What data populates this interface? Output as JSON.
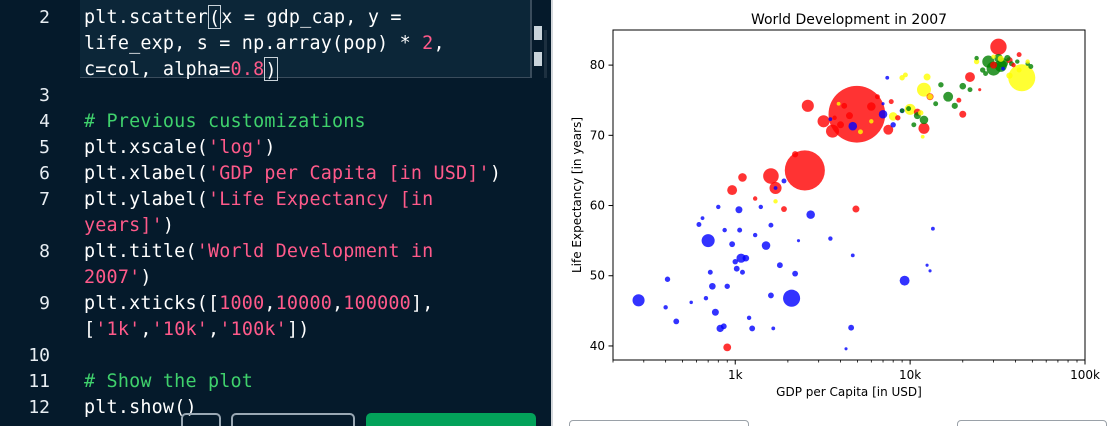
{
  "editor": {
    "lines": [
      {
        "num": "2",
        "segments": [
          {
            "t": "plt.scatter",
            "c": "plain"
          },
          {
            "t": "(",
            "c": "cursor"
          },
          {
            "t": "x = gdp_cap, y =",
            "c": "plain"
          }
        ]
      },
      {
        "num": "",
        "segments": [
          {
            "t": "life_exp, s = np.array(pop) * ",
            "c": "plain"
          },
          {
            "t": "2",
            "c": "num"
          },
          {
            "t": ",",
            "c": "plain"
          }
        ]
      },
      {
        "num": "",
        "segments": [
          {
            "t": "c=col, alpha=",
            "c": "plain"
          },
          {
            "t": "0.8",
            "c": "num"
          },
          {
            "t": ")",
            "c": "cursor"
          }
        ]
      },
      {
        "num": "3",
        "segments": []
      },
      {
        "num": "4",
        "segments": [
          {
            "t": "# Previous customizations",
            "c": "com"
          }
        ]
      },
      {
        "num": "5",
        "segments": [
          {
            "t": "plt.xscale(",
            "c": "plain"
          },
          {
            "t": "'log'",
            "c": "str"
          },
          {
            "t": ")",
            "c": "plain"
          }
        ]
      },
      {
        "num": "6",
        "segments": [
          {
            "t": "plt.xlabel(",
            "c": "plain"
          },
          {
            "t": "'GDP per Capita [in USD]'",
            "c": "str"
          },
          {
            "t": ")",
            "c": "plain"
          }
        ]
      },
      {
        "num": "7",
        "segments": [
          {
            "t": "plt.ylabel(",
            "c": "plain"
          },
          {
            "t": "'Life Expectancy [in",
            "c": "str"
          }
        ]
      },
      {
        "num": "",
        "segments": [
          {
            "t": "years]'",
            "c": "str"
          },
          {
            "t": ")",
            "c": "plain"
          }
        ]
      },
      {
        "num": "8",
        "segments": [
          {
            "t": "plt.title(",
            "c": "plain"
          },
          {
            "t": "'World Development in",
            "c": "str"
          }
        ]
      },
      {
        "num": "",
        "segments": [
          {
            "t": "2007'",
            "c": "str"
          },
          {
            "t": ")",
            "c": "plain"
          }
        ]
      },
      {
        "num": "9",
        "segments": [
          {
            "t": "plt.xticks([",
            "c": "plain"
          },
          {
            "t": "1000",
            "c": "num"
          },
          {
            "t": ",",
            "c": "plain"
          },
          {
            "t": "10000",
            "c": "num"
          },
          {
            "t": ",",
            "c": "plain"
          },
          {
            "t": "100000",
            "c": "num"
          },
          {
            "t": "],",
            "c": "plain"
          }
        ]
      },
      {
        "num": "",
        "segments": [
          {
            "t": "[",
            "c": "plain"
          },
          {
            "t": "'1k'",
            "c": "str"
          },
          {
            "t": ",",
            "c": "plain"
          },
          {
            "t": "'10k'",
            "c": "str"
          },
          {
            "t": ",",
            "c": "plain"
          },
          {
            "t": "'100k'",
            "c": "str"
          },
          {
            "t": "])",
            "c": "plain"
          }
        ]
      },
      {
        "num": "10",
        "segments": []
      },
      {
        "num": "11",
        "segments": [
          {
            "t": "# Show the plot",
            "c": "com"
          }
        ]
      },
      {
        "num": "12",
        "segments": [
          {
            "t": "plt.show",
            "c": "plain"
          },
          {
            "t": "()",
            "c": "plain"
          }
        ]
      }
    ],
    "colors": {
      "background": "#051a2b",
      "string": "#ff5a8a",
      "comment": "#3fd16c",
      "text": "#ffffff",
      "run_button": "#03a25a"
    }
  },
  "chart_data": {
    "type": "scatter",
    "title": "World Development in 2007",
    "xlabel": "GDP per Capita [in USD]",
    "ylabel": "Life Expectancy [in years]",
    "xscale": "log",
    "xlim": [
      200,
      100000
    ],
    "ylim": [
      38,
      85
    ],
    "xticks": [
      {
        "value": 1000,
        "label": "1k"
      },
      {
        "value": 10000,
        "label": "10k"
      },
      {
        "value": 100000,
        "label": "100k"
      }
    ],
    "yticks": [
      {
        "value": 40,
        "label": "40"
      },
      {
        "value": 50,
        "label": "50"
      },
      {
        "value": 60,
        "label": "60"
      },
      {
        "value": 70,
        "label": "70"
      },
      {
        "value": 80,
        "label": "80"
      }
    ],
    "grid": false,
    "alpha": 0.8,
    "points": [
      {
        "x": 280,
        "y": 46.5,
        "s": 60,
        "c": "blue"
      },
      {
        "x": 410,
        "y": 49.5,
        "s": 12,
        "c": "blue"
      },
      {
        "x": 400,
        "y": 45.5,
        "s": 8,
        "c": "blue"
      },
      {
        "x": 460,
        "y": 43.5,
        "s": 14,
        "c": "blue"
      },
      {
        "x": 560,
        "y": 46.2,
        "s": 5,
        "c": "blue"
      },
      {
        "x": 620,
        "y": 57.3,
        "s": 10,
        "c": "blue"
      },
      {
        "x": 650,
        "y": 58.2,
        "s": 6,
        "c": "blue"
      },
      {
        "x": 700,
        "y": 55,
        "s": 70,
        "c": "blue"
      },
      {
        "x": 720,
        "y": 50.5,
        "s": 10,
        "c": "blue"
      },
      {
        "x": 740,
        "y": 48.5,
        "s": 18,
        "c": "blue"
      },
      {
        "x": 680,
        "y": 46.8,
        "s": 8,
        "c": "blue"
      },
      {
        "x": 770,
        "y": 44.8,
        "s": 20,
        "c": "blue"
      },
      {
        "x": 820,
        "y": 42.5,
        "s": 22,
        "c": "blue"
      },
      {
        "x": 860,
        "y": 42.8,
        "s": 14,
        "c": "blue"
      },
      {
        "x": 870,
        "y": 56.5,
        "s": 8,
        "c": "blue"
      },
      {
        "x": 800,
        "y": 59.8,
        "s": 8,
        "c": "blue"
      },
      {
        "x": 900,
        "y": 48.5,
        "s": 12,
        "c": "blue"
      },
      {
        "x": 960,
        "y": 54.5,
        "s": 14,
        "c": "blue"
      },
      {
        "x": 1000,
        "y": 52,
        "s": 12,
        "c": "blue"
      },
      {
        "x": 1020,
        "y": 51,
        "s": 14,
        "c": "blue"
      },
      {
        "x": 1050,
        "y": 59.4,
        "s": 20,
        "c": "blue"
      },
      {
        "x": 1060,
        "y": 56.5,
        "s": 10,
        "c": "blue"
      },
      {
        "x": 1080,
        "y": 52.5,
        "s": 35,
        "c": "blue"
      },
      {
        "x": 1100,
        "y": 50.5,
        "s": 10,
        "c": "blue"
      },
      {
        "x": 1150,
        "y": 52.5,
        "s": 18,
        "c": "blue"
      },
      {
        "x": 1200,
        "y": 44,
        "s": 8,
        "c": "blue"
      },
      {
        "x": 1250,
        "y": 42.5,
        "s": 14,
        "c": "blue"
      },
      {
        "x": 1300,
        "y": 55.8,
        "s": 8,
        "c": "blue"
      },
      {
        "x": 1400,
        "y": 59.8,
        "s": 8,
        "c": "blue"
      },
      {
        "x": 1500,
        "y": 54.3,
        "s": 30,
        "c": "blue"
      },
      {
        "x": 1600,
        "y": 57.2,
        "s": 10,
        "c": "blue"
      },
      {
        "x": 1650,
        "y": 42.5,
        "s": 6,
        "c": "blue"
      },
      {
        "x": 1600,
        "y": 47.2,
        "s": 14,
        "c": "blue"
      },
      {
        "x": 1700,
        "y": 62.5,
        "s": 6,
        "c": "blue"
      },
      {
        "x": 1800,
        "y": 51.5,
        "s": 14,
        "c": "blue"
      },
      {
        "x": 1900,
        "y": 63.5,
        "s": 10,
        "c": "blue"
      },
      {
        "x": 2100,
        "y": 46.8,
        "s": 120,
        "c": "blue"
      },
      {
        "x": 2200,
        "y": 50.3,
        "s": 14,
        "c": "blue"
      },
      {
        "x": 2300,
        "y": 55,
        "s": 4,
        "c": "blue"
      },
      {
        "x": 2700,
        "y": 58.7,
        "s": 30,
        "c": "blue"
      },
      {
        "x": 3500,
        "y": 55.3,
        "s": 8,
        "c": "blue"
      },
      {
        "x": 4300,
        "y": 39.6,
        "s": 4,
        "c": "blue"
      },
      {
        "x": 4600,
        "y": 42.6,
        "s": 14,
        "c": "blue"
      },
      {
        "x": 4700,
        "y": 52.9,
        "s": 6,
        "c": "blue"
      },
      {
        "x": 9300,
        "y": 49.3,
        "s": 40,
        "c": "blue"
      },
      {
        "x": 12500,
        "y": 51.5,
        "s": 4,
        "c": "blue"
      },
      {
        "x": 13000,
        "y": 50.7,
        "s": 4,
        "c": "blue"
      },
      {
        "x": 13500,
        "y": 56.7,
        "s": 6,
        "c": "blue"
      },
      {
        "x": 3500,
        "y": 72.3,
        "s": 6,
        "c": "blue"
      },
      {
        "x": 7000,
        "y": 73,
        "s": 30,
        "c": "blue"
      },
      {
        "x": 8000,
        "y": 71.5,
        "s": 12,
        "c": "blue"
      },
      {
        "x": 9000,
        "y": 73.5,
        "s": 10,
        "c": "blue"
      },
      {
        "x": 4700,
        "y": 71.3,
        "s": 30,
        "c": "blue"
      },
      {
        "x": 7400,
        "y": 78.2,
        "s": 6,
        "c": "blue"
      },
      {
        "x": 34000,
        "y": 79.5,
        "s": 6,
        "c": "blue"
      },
      {
        "x": 7000,
        "y": 74.5,
        "s": 4,
        "c": "blue"
      },
      {
        "x": 960,
        "y": 62.2,
        "s": 40,
        "c": "red"
      },
      {
        "x": 1100,
        "y": 64,
        "s": 30,
        "c": "red"
      },
      {
        "x": 1300,
        "y": 61,
        "s": 8,
        "c": "red"
      },
      {
        "x": 1600,
        "y": 64.2,
        "s": 100,
        "c": "red"
      },
      {
        "x": 1700,
        "y": 62.5,
        "s": 60,
        "c": "red"
      },
      {
        "x": 1900,
        "y": 59.5,
        "s": 14,
        "c": "red"
      },
      {
        "x": 2200,
        "y": 67.3,
        "s": 16,
        "c": "red"
      },
      {
        "x": 2500,
        "y": 65,
        "s": 660,
        "c": "red"
      },
      {
        "x": 2600,
        "y": 74.2,
        "s": 60,
        "c": "red"
      },
      {
        "x": 3200,
        "y": 72,
        "s": 60,
        "c": "red"
      },
      {
        "x": 3600,
        "y": 70.6,
        "s": 70,
        "c": "red"
      },
      {
        "x": 4000,
        "y": 71.5,
        "s": 20,
        "c": "red"
      },
      {
        "x": 4200,
        "y": 74.2,
        "s": 14,
        "c": "red"
      },
      {
        "x": 4500,
        "y": 72.8,
        "s": 20,
        "c": "red"
      },
      {
        "x": 4900,
        "y": 59.5,
        "s": 20,
        "c": "red"
      },
      {
        "x": 4960,
        "y": 73,
        "s": 1320,
        "c": "red"
      },
      {
        "x": 6000,
        "y": 74.1,
        "s": 30,
        "c": "red"
      },
      {
        "x": 7500,
        "y": 70.8,
        "s": 40,
        "c": "red"
      },
      {
        "x": 7800,
        "y": 74.8,
        "s": 10,
        "c": "red"
      },
      {
        "x": 8500,
        "y": 72.5,
        "s": 12,
        "c": "red"
      },
      {
        "x": 11000,
        "y": 73.3,
        "s": 20,
        "c": "red"
      },
      {
        "x": 12000,
        "y": 71,
        "s": 50,
        "c": "red"
      },
      {
        "x": 13000,
        "y": 75.5,
        "s": 20,
        "c": "red"
      },
      {
        "x": 19000,
        "y": 75,
        "s": 10,
        "c": "red"
      },
      {
        "x": 20000,
        "y": 73,
        "s": 20,
        "c": "red"
      },
      {
        "x": 22000,
        "y": 78.3,
        "s": 40,
        "c": "red"
      },
      {
        "x": 25000,
        "y": 76.5,
        "s": 4,
        "c": "red"
      },
      {
        "x": 30000,
        "y": 80,
        "s": 20,
        "c": "red"
      },
      {
        "x": 32000,
        "y": 82.6,
        "s": 110,
        "c": "red"
      },
      {
        "x": 37000,
        "y": 80.7,
        "s": 16,
        "c": "red"
      },
      {
        "x": 39000,
        "y": 80,
        "s": 8,
        "c": "red"
      },
      {
        "x": 42000,
        "y": 81.5,
        "s": 10,
        "c": "red"
      },
      {
        "x": 900,
        "y": 39.8,
        "s": 25,
        "c": "red"
      },
      {
        "x": 3700,
        "y": 72.5,
        "s": 8,
        "c": "red"
      },
      {
        "x": 6500,
        "y": 75.5,
        "s": 10,
        "c": "red"
      },
      {
        "x": 12000,
        "y": 72.2,
        "s": 30,
        "c": "green"
      },
      {
        "x": 9000,
        "y": 73.5,
        "s": 8,
        "c": "green"
      },
      {
        "x": 9800,
        "y": 73.8,
        "s": 10,
        "c": "green"
      },
      {
        "x": 10500,
        "y": 71.5,
        "s": 10,
        "c": "green"
      },
      {
        "x": 11000,
        "y": 72.8,
        "s": 20,
        "c": "green"
      },
      {
        "x": 14000,
        "y": 74.5,
        "s": 10,
        "c": "green"
      },
      {
        "x": 15000,
        "y": 77.2,
        "s": 12,
        "c": "green"
      },
      {
        "x": 16500,
        "y": 75.5,
        "s": 40,
        "c": "green"
      },
      {
        "x": 18000,
        "y": 74.2,
        "s": 16,
        "c": "green"
      },
      {
        "x": 20000,
        "y": 77,
        "s": 18,
        "c": "green"
      },
      {
        "x": 22000,
        "y": 76.5,
        "s": 10,
        "c": "green"
      },
      {
        "x": 26000,
        "y": 79.3,
        "s": 12,
        "c": "green"
      },
      {
        "x": 28000,
        "y": 80.5,
        "s": 60,
        "c": "green"
      },
      {
        "x": 30000,
        "y": 79.5,
        "s": 80,
        "c": "green"
      },
      {
        "x": 32000,
        "y": 81,
        "s": 30,
        "c": "green"
      },
      {
        "x": 33000,
        "y": 79.9,
        "s": 60,
        "c": "green"
      },
      {
        "x": 34000,
        "y": 80.3,
        "s": 40,
        "c": "green"
      },
      {
        "x": 36000,
        "y": 81,
        "s": 16,
        "c": "green"
      },
      {
        "x": 38000,
        "y": 80.2,
        "s": 10,
        "c": "green"
      },
      {
        "x": 41000,
        "y": 80.5,
        "s": 8,
        "c": "green"
      },
      {
        "x": 47000,
        "y": 80.2,
        "s": 8,
        "c": "green"
      },
      {
        "x": 49000,
        "y": 79.8,
        "s": 10,
        "c": "green"
      },
      {
        "x": 27000,
        "y": 78.8,
        "s": 10,
        "c": "green"
      },
      {
        "x": 24000,
        "y": 81,
        "s": 8,
        "c": "green"
      },
      {
        "x": 8000,
        "y": 72.7,
        "s": 30,
        "c": "yellow"
      },
      {
        "x": 10000,
        "y": 73.7,
        "s": 50,
        "c": "yellow"
      },
      {
        "x": 11500,
        "y": 73.2,
        "s": 12,
        "c": "yellow"
      },
      {
        "x": 12000,
        "y": 76.5,
        "s": 80,
        "c": "yellow"
      },
      {
        "x": 12500,
        "y": 78.3,
        "s": 20,
        "c": "yellow"
      },
      {
        "x": 13000,
        "y": 75.5,
        "s": 14,
        "c": "yellow"
      },
      {
        "x": 11800,
        "y": 69.8,
        "s": 6,
        "c": "yellow"
      },
      {
        "x": 9000,
        "y": 78.2,
        "s": 12,
        "c": "yellow"
      },
      {
        "x": 9400,
        "y": 78.6,
        "s": 10,
        "c": "yellow"
      },
      {
        "x": 24000,
        "y": 80.5,
        "s": 12,
        "c": "yellow"
      },
      {
        "x": 30000,
        "y": 81.2,
        "s": 8,
        "c": "yellow"
      },
      {
        "x": 33000,
        "y": 80.9,
        "s": 16,
        "c": "yellow"
      },
      {
        "x": 37000,
        "y": 78.5,
        "s": 16,
        "c": "yellow"
      },
      {
        "x": 42000,
        "y": 79.3,
        "s": 10,
        "c": "yellow"
      },
      {
        "x": 43500,
        "y": 78.2,
        "s": 300,
        "c": "yellow"
      },
      {
        "x": 47000,
        "y": 80.5,
        "s": 8,
        "c": "yellow"
      },
      {
        "x": 6000,
        "y": 72,
        "s": 8,
        "c": "yellow"
      },
      {
        "x": 5200,
        "y": 70.5,
        "s": 10,
        "c": "yellow"
      },
      {
        "x": 3900,
        "y": 74.5,
        "s": 6,
        "c": "yellow"
      },
      {
        "x": 1700,
        "y": 60.6,
        "s": 8,
        "c": "yellow"
      }
    ]
  }
}
